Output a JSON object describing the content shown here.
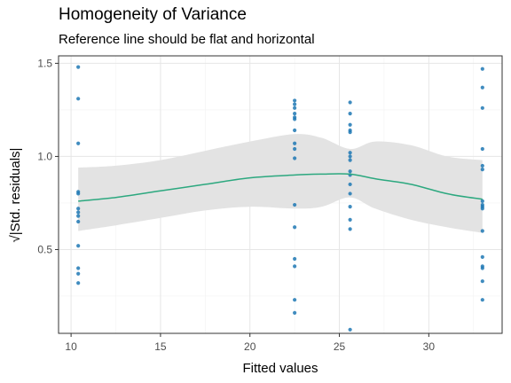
{
  "chart_data": {
    "type": "scatter",
    "title": "Homogeneity of Variance",
    "subtitle": "Reference line should be flat and horizontal",
    "xlabel": "Fitted values",
    "ylabel": "√|Std. residuals|",
    "xlim": [
      9.3,
      34.1
    ],
    "ylim": [
      0.05,
      1.54
    ],
    "xticks": [
      10,
      15,
      20,
      25,
      30
    ],
    "yticks": [
      0.5,
      1.0,
      1.5
    ],
    "ytick_labels": [
      "0.5",
      "1.0",
      "1.5"
    ],
    "grid": true,
    "colors": {
      "points": "#1f78b4",
      "smooth_line": "#2ca87f",
      "confidence_band": "#e3e3e3"
    },
    "points": [
      {
        "x": 10.4,
        "y": 1.48
      },
      {
        "x": 10.4,
        "y": 1.31
      },
      {
        "x": 10.4,
        "y": 1.07
      },
      {
        "x": 10.4,
        "y": 0.81
      },
      {
        "x": 10.4,
        "y": 0.8
      },
      {
        "x": 10.4,
        "y": 0.72
      },
      {
        "x": 10.4,
        "y": 0.7
      },
      {
        "x": 10.4,
        "y": 0.68
      },
      {
        "x": 10.4,
        "y": 0.65
      },
      {
        "x": 10.4,
        "y": 0.52
      },
      {
        "x": 10.4,
        "y": 0.4
      },
      {
        "x": 10.4,
        "y": 0.37
      },
      {
        "x": 10.4,
        "y": 0.32
      },
      {
        "x": 22.5,
        "y": 1.3
      },
      {
        "x": 22.5,
        "y": 1.28
      },
      {
        "x": 22.5,
        "y": 1.26
      },
      {
        "x": 22.5,
        "y": 1.23
      },
      {
        "x": 22.5,
        "y": 1.21
      },
      {
        "x": 22.5,
        "y": 1.2
      },
      {
        "x": 22.5,
        "y": 1.14
      },
      {
        "x": 22.5,
        "y": 1.07
      },
      {
        "x": 22.5,
        "y": 1.04
      },
      {
        "x": 22.5,
        "y": 0.99
      },
      {
        "x": 22.5,
        "y": 0.74
      },
      {
        "x": 22.5,
        "y": 0.62
      },
      {
        "x": 22.5,
        "y": 0.45
      },
      {
        "x": 22.5,
        "y": 0.41
      },
      {
        "x": 22.5,
        "y": 0.23
      },
      {
        "x": 22.5,
        "y": 0.16
      },
      {
        "x": 25.6,
        "y": 1.29
      },
      {
        "x": 25.6,
        "y": 1.23
      },
      {
        "x": 25.6,
        "y": 1.17
      },
      {
        "x": 25.6,
        "y": 1.14
      },
      {
        "x": 25.6,
        "y": 1.13
      },
      {
        "x": 25.6,
        "y": 1.02
      },
      {
        "x": 25.6,
        "y": 1.0
      },
      {
        "x": 25.6,
        "y": 0.98
      },
      {
        "x": 25.6,
        "y": 0.92
      },
      {
        "x": 25.6,
        "y": 0.9
      },
      {
        "x": 25.6,
        "y": 0.85
      },
      {
        "x": 25.6,
        "y": 0.8
      },
      {
        "x": 25.6,
        "y": 0.73
      },
      {
        "x": 25.6,
        "y": 0.66
      },
      {
        "x": 25.6,
        "y": 0.61
      },
      {
        "x": 25.6,
        "y": 0.07
      },
      {
        "x": 33.0,
        "y": 1.47
      },
      {
        "x": 33.0,
        "y": 1.37
      },
      {
        "x": 33.0,
        "y": 1.26
      },
      {
        "x": 33.0,
        "y": 1.04
      },
      {
        "x": 33.0,
        "y": 0.95
      },
      {
        "x": 33.0,
        "y": 0.93
      },
      {
        "x": 33.0,
        "y": 0.76
      },
      {
        "x": 33.0,
        "y": 0.74
      },
      {
        "x": 33.0,
        "y": 0.73
      },
      {
        "x": 33.0,
        "y": 0.72
      },
      {
        "x": 33.0,
        "y": 0.6
      },
      {
        "x": 33.0,
        "y": 0.46
      },
      {
        "x": 33.0,
        "y": 0.41
      },
      {
        "x": 33.0,
        "y": 0.4
      },
      {
        "x": 33.0,
        "y": 0.33
      },
      {
        "x": 33.0,
        "y": 0.23
      }
    ],
    "smooth": {
      "x": [
        10.4,
        12.5,
        15,
        17.5,
        20,
        22.5,
        24,
        25.6,
        27,
        29,
        31,
        33
      ],
      "y": [
        0.76,
        0.78,
        0.815,
        0.85,
        0.885,
        0.9,
        0.905,
        0.905,
        0.88,
        0.85,
        0.8,
        0.77
      ],
      "upper": [
        0.94,
        0.95,
        0.98,
        1.03,
        1.08,
        1.12,
        1.1,
        1.04,
        1.08,
        1.06,
        1.0,
        0.98
      ],
      "lower": [
        0.6,
        0.63,
        0.67,
        0.71,
        0.73,
        0.72,
        0.73,
        0.78,
        0.72,
        0.66,
        0.62,
        0.59
      ]
    }
  }
}
